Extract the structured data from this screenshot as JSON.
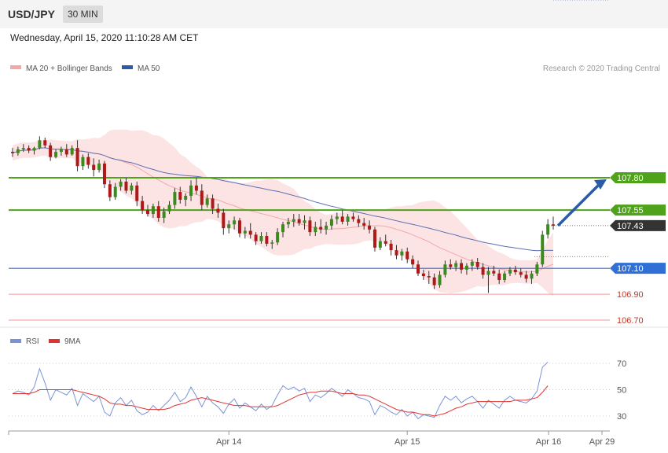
{
  "header": {
    "symbol": "USD/JPY",
    "timeframe": "30 MIN",
    "datetime": "Wednesday, April 15, 2020 11:10:28 AM CET"
  },
  "legend": {
    "ma20": "MA 20 + Bollinger Bands",
    "ma50": "MA 50",
    "credit": "Research © 2020 Trading Central",
    "rsi": "RSI",
    "rsi_ma": "9MA"
  },
  "colors": {
    "green_level": "#4fa31a",
    "blue_level": "#2f6fd6",
    "red_level": "#f09a9a",
    "current": "#333333",
    "ma20": "#f3a8a8",
    "ma50": "#5b6fb3",
    "band": "#fde1e1",
    "candle_up": "#3a8a1e",
    "candle_down": "#b01717",
    "arrow": "#2a5aa8",
    "rsi": "#7b93d6",
    "rsi_ma": "#e0332f"
  },
  "chart_data": [
    {
      "type": "candlestick",
      "ylim": [
        106.6,
        108.3
      ],
      "levels": [
        {
          "label": "107.80",
          "value": 107.8,
          "kind": "resistance"
        },
        {
          "label": "107.55",
          "value": 107.55,
          "kind": "resistance"
        },
        {
          "label": "107.43",
          "value": 107.43,
          "kind": "current"
        },
        {
          "label": "107.10",
          "value": 107.1,
          "kind": "pivot"
        },
        {
          "label": "106.90",
          "value": 106.9,
          "kind": "support"
        },
        {
          "label": "106.70",
          "value": 106.7,
          "kind": "support"
        }
      ],
      "ohlc": [
        [
          108.0,
          108.03,
          107.96,
          107.99
        ],
        [
          107.99,
          108.04,
          107.97,
          108.02
        ],
        [
          108.02,
          108.06,
          108.0,
          108.03
        ],
        [
          108.03,
          108.05,
          107.99,
          108.01
        ],
        [
          108.01,
          108.04,
          107.98,
          108.03
        ],
        [
          108.03,
          108.12,
          108.02,
          108.09
        ],
        [
          108.09,
          108.11,
          108.03,
          108.05
        ],
        [
          108.05,
          108.07,
          107.93,
          107.96
        ],
        [
          107.96,
          108.02,
          107.95,
          108.0
        ],
        [
          108.0,
          108.04,
          107.97,
          108.02
        ],
        [
          108.02,
          108.06,
          107.96,
          107.98
        ],
        [
          107.98,
          108.05,
          107.97,
          108.03
        ],
        [
          108.03,
          108.09,
          107.85,
          107.89
        ],
        [
          107.89,
          107.98,
          107.86,
          107.96
        ],
        [
          107.96,
          107.99,
          107.87,
          107.9
        ],
        [
          107.9,
          107.95,
          107.81,
          107.86
        ],
        [
          107.86,
          107.94,
          107.84,
          107.91
        ],
        [
          107.91,
          107.93,
          107.72,
          107.75
        ],
        [
          107.75,
          107.78,
          107.62,
          107.65
        ],
        [
          107.65,
          107.76,
          107.63,
          107.73
        ],
        [
          107.73,
          107.79,
          107.7,
          107.77
        ],
        [
          107.77,
          107.8,
          107.68,
          107.7
        ],
        [
          107.7,
          107.76,
          107.67,
          107.74
        ],
        [
          107.74,
          107.77,
          107.58,
          107.62
        ],
        [
          107.62,
          107.66,
          107.52,
          107.55
        ],
        [
          107.55,
          107.59,
          107.5,
          107.52
        ],
        [
          107.52,
          107.6,
          107.49,
          107.58
        ],
        [
          107.58,
          107.62,
          107.46,
          107.49
        ],
        [
          107.49,
          107.57,
          107.45,
          107.54
        ],
        [
          107.54,
          107.62,
          107.52,
          107.59
        ],
        [
          107.59,
          107.72,
          107.56,
          107.69
        ],
        [
          107.69,
          107.73,
          107.6,
          107.63
        ],
        [
          107.63,
          107.68,
          107.58,
          107.66
        ],
        [
          107.66,
          107.78,
          107.62,
          107.74
        ],
        [
          107.74,
          107.8,
          107.67,
          107.7
        ],
        [
          107.7,
          107.75,
          107.55,
          107.59
        ],
        [
          107.59,
          107.67,
          107.57,
          107.64
        ],
        [
          107.64,
          107.67,
          107.52,
          107.56
        ],
        [
          107.56,
          107.6,
          107.49,
          107.53
        ],
        [
          107.53,
          107.56,
          107.36,
          107.41
        ],
        [
          107.41,
          107.47,
          107.37,
          107.44
        ],
        [
          107.44,
          107.5,
          107.4,
          107.47
        ],
        [
          107.47,
          107.49,
          107.34,
          107.37
        ],
        [
          107.37,
          107.42,
          107.33,
          107.39
        ],
        [
          107.39,
          107.45,
          107.33,
          107.36
        ],
        [
          107.36,
          107.38,
          107.28,
          107.31
        ],
        [
          107.31,
          107.38,
          107.29,
          107.35
        ],
        [
          107.35,
          107.38,
          107.27,
          107.29
        ],
        [
          107.29,
          107.32,
          107.25,
          107.3
        ],
        [
          107.3,
          107.41,
          107.28,
          107.38
        ],
        [
          107.38,
          107.46,
          107.34,
          107.44
        ],
        [
          107.44,
          107.49,
          107.41,
          107.46
        ],
        [
          107.46,
          107.52,
          107.42,
          107.48
        ],
        [
          107.48,
          107.52,
          107.43,
          107.45
        ],
        [
          107.45,
          107.51,
          107.4,
          107.47
        ],
        [
          107.47,
          107.5,
          107.35,
          107.38
        ],
        [
          107.38,
          107.46,
          107.35,
          107.42
        ],
        [
          107.42,
          107.48,
          107.37,
          107.4
        ],
        [
          107.4,
          107.46,
          107.36,
          107.43
        ],
        [
          107.43,
          107.51,
          107.4,
          107.48
        ],
        [
          107.48,
          107.53,
          107.44,
          107.5
        ],
        [
          107.5,
          107.55,
          107.44,
          107.46
        ],
        [
          107.46,
          107.52,
          107.43,
          107.5
        ],
        [
          107.5,
          107.53,
          107.46,
          107.48
        ],
        [
          107.48,
          107.51,
          107.42,
          107.45
        ],
        [
          107.45,
          107.49,
          107.4,
          107.43
        ],
        [
          107.43,
          107.47,
          107.37,
          107.4
        ],
        [
          107.4,
          107.42,
          107.23,
          107.26
        ],
        [
          107.26,
          107.34,
          107.24,
          107.31
        ],
        [
          107.31,
          107.36,
          107.27,
          107.29
        ],
        [
          107.29,
          107.32,
          107.2,
          107.24
        ],
        [
          107.24,
          107.28,
          107.17,
          107.2
        ],
        [
          107.2,
          107.25,
          107.16,
          107.23
        ],
        [
          107.23,
          107.26,
          107.14,
          107.17
        ],
        [
          107.17,
          107.2,
          107.1,
          107.13
        ],
        [
          107.13,
          107.16,
          107.04,
          107.06
        ],
        [
          107.06,
          107.09,
          107.01,
          107.04
        ],
        [
          107.04,
          107.08,
          106.98,
          107.03
        ],
        [
          107.03,
          107.06,
          106.94,
          106.97
        ],
        [
          106.97,
          107.08,
          106.95,
          107.05
        ],
        [
          107.05,
          107.16,
          107.03,
          107.13
        ],
        [
          107.13,
          107.17,
          107.09,
          107.11
        ],
        [
          107.11,
          107.16,
          107.08,
          107.14
        ],
        [
          107.14,
          107.17,
          107.06,
          107.09
        ],
        [
          107.09,
          107.14,
          107.05,
          107.12
        ],
        [
          107.12,
          107.17,
          107.08,
          107.15
        ],
        [
          107.15,
          107.18,
          107.09,
          107.11
        ],
        [
          107.11,
          107.14,
          107.02,
          107.05
        ],
        [
          107.05,
          107.11,
          106.91,
          107.08
        ],
        [
          107.08,
          107.12,
          107.04,
          107.06
        ],
        [
          107.06,
          107.09,
          106.98,
          107.01
        ],
        [
          107.01,
          107.08,
          106.99,
          107.06
        ],
        [
          107.06,
          107.11,
          107.04,
          107.09
        ],
        [
          107.09,
          107.12,
          107.05,
          107.07
        ],
        [
          107.07,
          107.1,
          107.03,
          107.05
        ],
        [
          107.05,
          107.08,
          106.99,
          107.02
        ],
        [
          107.02,
          107.08,
          106.98,
          107.06
        ],
        [
          107.06,
          107.15,
          107.04,
          107.13
        ],
        [
          107.13,
          107.39,
          107.11,
          107.36
        ],
        [
          107.36,
          107.48,
          107.33,
          107.44
        ],
        [
          107.44,
          107.5,
          107.4,
          107.43
        ]
      ]
    },
    {
      "type": "line",
      "name": "RSI",
      "ylim": [
        20,
        80
      ],
      "yticks": [
        30,
        50,
        70
      ],
      "xticks": [
        {
          "label": "Apr 14",
          "index": 40
        },
        {
          "label": "Apr 15",
          "index": 73
        },
        {
          "label": "Apr 16",
          "index": 89
        },
        {
          "label": "Apr 29",
          "index": 98
        }
      ],
      "series": [
        {
          "name": "RSI",
          "values": [
            47,
            49,
            48,
            46,
            52,
            66,
            55,
            42,
            50,
            48,
            46,
            51,
            38,
            47,
            44,
            41,
            45,
            33,
            30,
            40,
            44,
            38,
            42,
            34,
            31,
            33,
            38,
            34,
            38,
            42,
            48,
            41,
            44,
            52,
            45,
            37,
            45,
            40,
            37,
            32,
            39,
            43,
            36,
            40,
            37,
            34,
            39,
            35,
            38,
            46,
            53,
            50,
            52,
            49,
            51,
            41,
            46,
            44,
            47,
            51,
            48,
            45,
            50,
            47,
            44,
            43,
            41,
            31,
            38,
            36,
            33,
            31,
            35,
            30,
            33,
            28,
            31,
            30,
            29,
            38,
            45,
            42,
            45,
            40,
            43,
            45,
            41,
            36,
            42,
            39,
            36,
            42,
            45,
            42,
            41,
            40,
            43,
            49,
            67,
            71
          ]
        },
        {
          "name": "9MA",
          "values": [
            47,
            47,
            47,
            47,
            48,
            50,
            50,
            50,
            50,
            50,
            50,
            50,
            49,
            48,
            47,
            46,
            45,
            43,
            40,
            39,
            39,
            38,
            38,
            37,
            36,
            35,
            35,
            35,
            35,
            36,
            38,
            39,
            40,
            42,
            43,
            44,
            43,
            42,
            41,
            40,
            39,
            38,
            38,
            38,
            37,
            37,
            37,
            37,
            37,
            38,
            40,
            42,
            44,
            46,
            47,
            48,
            48,
            49,
            49,
            49,
            48,
            47,
            47,
            47,
            46,
            46,
            45,
            43,
            41,
            39,
            37,
            35,
            34,
            33,
            33,
            32,
            31,
            31,
            30,
            31,
            32,
            34,
            36,
            37,
            39,
            40,
            41,
            41,
            41,
            41,
            41,
            41,
            41,
            42,
            42,
            42,
            43,
            44,
            48,
            53
          ]
        }
      ]
    }
  ]
}
